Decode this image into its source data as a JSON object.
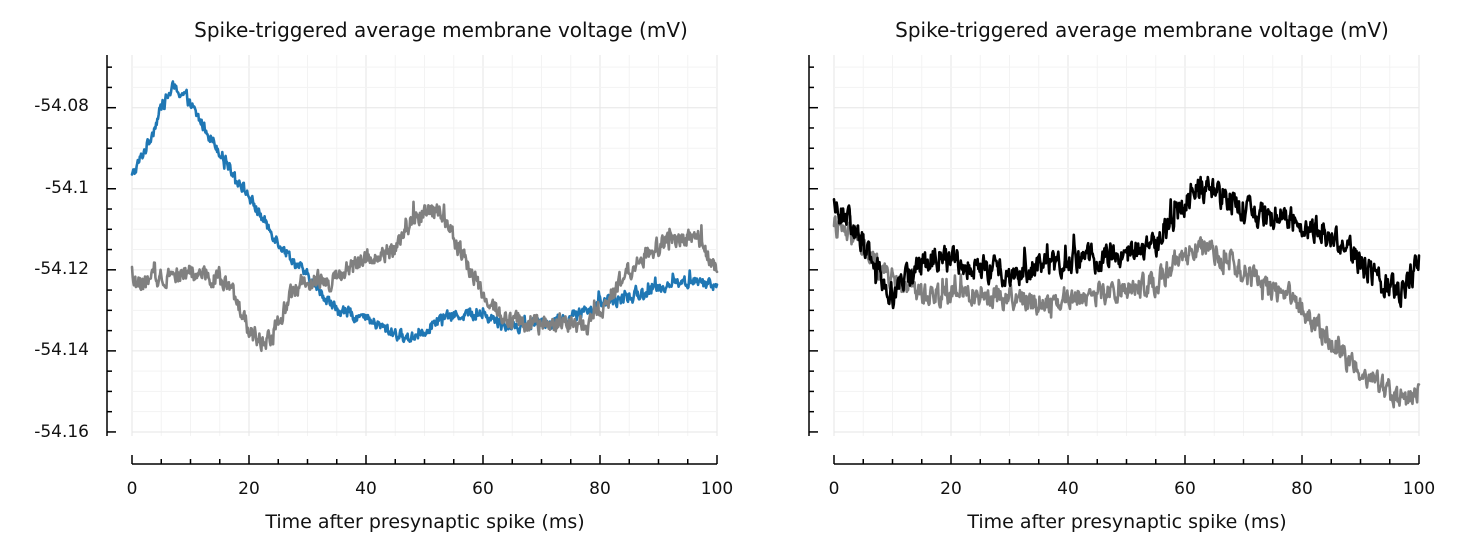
{
  "chart_data": [
    {
      "type": "line",
      "title": "Spike-triggered average membrane voltage (mV)",
      "xlabel": "Time after presynaptic spike (ms)",
      "ylabel": "",
      "xlim": [
        0,
        100
      ],
      "ylim": [
        -54.161,
        -54.067
      ],
      "xticks": [
        0,
        20,
        40,
        60,
        80,
        100
      ],
      "xtick_labels": [
        "0",
        "20",
        "40",
        "60",
        "80",
        "100"
      ],
      "yticks": [
        -54.08,
        -54.1,
        -54.12,
        -54.14,
        -54.16
      ],
      "ytick_labels": [
        "-54.08",
        "-54.1",
        "-54.12",
        "-54.14",
        "-54.16"
      ],
      "show_ytick_labels": true,
      "grid": true,
      "series": [
        {
          "name": "blue",
          "color": "#1f77b4",
          "noise": 0.0022,
          "x": [
            0,
            3,
            5,
            7,
            9,
            12,
            16,
            20,
            23,
            26,
            29,
            32,
            35,
            38,
            41,
            44,
            47,
            50,
            53,
            56,
            60,
            63,
            66,
            70,
            74,
            78,
            81,
            85,
            89,
            93,
            97,
            100
          ],
          "y": [
            -54.097,
            -54.088,
            -54.08,
            -54.075,
            -54.077,
            -54.084,
            -54.093,
            -54.102,
            -54.109,
            -54.115,
            -54.12,
            -54.125,
            -54.13,
            -54.131,
            -54.133,
            -54.135,
            -54.137,
            -54.135,
            -54.132,
            -54.131,
            -54.131,
            -54.133,
            -54.134,
            -54.133,
            -54.132,
            -54.13,
            -54.128,
            -54.127,
            -54.125,
            -54.123,
            -54.123,
            -54.124
          ]
        },
        {
          "name": "gray",
          "color": "#808080",
          "noise": 0.0035,
          "x": [
            0,
            3,
            6,
            9,
            12,
            15,
            18,
            20,
            22,
            24,
            26,
            28,
            31,
            34,
            37,
            40,
            43,
            46,
            48,
            50,
            52,
            54,
            57,
            60,
            63,
            66,
            70,
            74,
            78,
            80,
            83,
            86,
            90,
            94,
            97,
            100
          ],
          "y": [
            -54.124,
            -54.123,
            -54.121,
            -54.121,
            -54.121,
            -54.122,
            -54.128,
            -54.135,
            -54.138,
            -54.136,
            -54.13,
            -54.124,
            -54.122,
            -54.123,
            -54.12,
            -54.117,
            -54.116,
            -54.113,
            -54.108,
            -54.105,
            -54.106,
            -54.109,
            -54.118,
            -54.126,
            -54.131,
            -54.133,
            -54.134,
            -54.133,
            -54.134,
            -54.131,
            -54.124,
            -54.118,
            -54.114,
            -54.112,
            -54.113,
            -54.12
          ]
        }
      ]
    },
    {
      "type": "line",
      "title": "Spike-triggered average membrane voltage (mV)",
      "xlabel": "Time after presynaptic spike (ms)",
      "ylabel": "",
      "xlim": [
        0,
        100
      ],
      "ylim": [
        -54.161,
        -54.067
      ],
      "xticks": [
        0,
        20,
        40,
        60,
        80,
        100
      ],
      "xtick_labels": [
        "0",
        "20",
        "40",
        "60",
        "80",
        "100"
      ],
      "yticks": [
        -54.08,
        -54.1,
        -54.12,
        -54.14,
        -54.16
      ],
      "ytick_labels": [
        "",
        "",
        "",
        "",
        ""
      ],
      "show_ytick_labels": false,
      "grid": true,
      "series": [
        {
          "name": "gray",
          "color": "#808080",
          "noise": 0.0042,
          "x": [
            0,
            4,
            8,
            12,
            16,
            20,
            25,
            30,
            35,
            40,
            45,
            50,
            55,
            60,
            63,
            66,
            70,
            74,
            78,
            82,
            85,
            88,
            91,
            94,
            97,
            100
          ],
          "y": [
            -54.109,
            -54.113,
            -54.12,
            -54.124,
            -54.126,
            -54.126,
            -54.126,
            -54.127,
            -54.128,
            -54.127,
            -54.126,
            -54.125,
            -54.123,
            -54.117,
            -54.115,
            -54.117,
            -54.121,
            -54.124,
            -54.126,
            -54.133,
            -54.138,
            -54.142,
            -54.146,
            -54.149,
            -54.152,
            -54.15
          ]
        },
        {
          "name": "black",
          "color": "#000000",
          "noise": 0.0048,
          "x": [
            0,
            2,
            5,
            8,
            10,
            13,
            17,
            21,
            26,
            31,
            35,
            40,
            45,
            50,
            55,
            58,
            61,
            64,
            68,
            72,
            76,
            80,
            84,
            88,
            91,
            94,
            97,
            100
          ],
          "y": [
            -54.104,
            -54.107,
            -54.113,
            -54.121,
            -54.126,
            -54.121,
            -54.117,
            -54.118,
            -54.12,
            -54.121,
            -54.119,
            -54.118,
            -54.117,
            -54.116,
            -54.114,
            -54.108,
            -54.101,
            -54.1,
            -54.103,
            -54.106,
            -54.107,
            -54.108,
            -54.111,
            -54.115,
            -54.12,
            -54.124,
            -54.126,
            -54.118
          ]
        }
      ]
    }
  ]
}
